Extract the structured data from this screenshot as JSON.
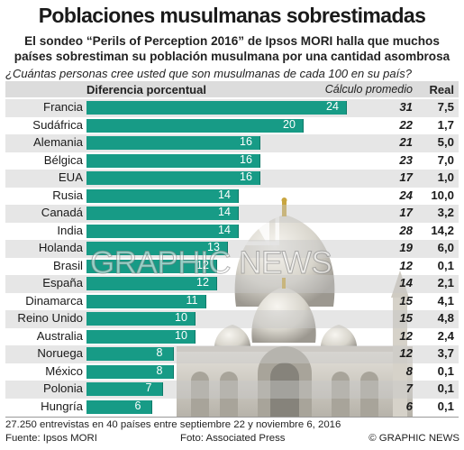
{
  "header": {
    "title": "Poblaciones musulmanas sobrestimadas",
    "subtitle_line1": "El sondeo “Perils of Perception 2016” de Ipsos MORI halla que muchos",
    "subtitle_line2": "países sobrestiman su población musulmana por una cantidad asombrosa",
    "question": "¿Cuántas personas cree usted que son musulmanas de cada 100 en su país?"
  },
  "columns": {
    "diff": "Diferencia porcentual",
    "calc": "Cálculo promedio",
    "real": "Real"
  },
  "chart_data": {
    "type": "bar",
    "orientation": "horizontal",
    "title": "Poblaciones musulmanas sobrestimadas",
    "xlabel": "Diferencia porcentual",
    "xlim": [
      0,
      24
    ],
    "categories": [
      "Francia",
      "Sudáfrica",
      "Alemania",
      "Bélgica",
      "EUA",
      "Rusia",
      "Canadá",
      "India",
      "Holanda",
      "Brasil",
      "España",
      "Dinamarca",
      "Reino Unido",
      "Australia",
      "Noruega",
      "México",
      "Polonia",
      "Hungría"
    ],
    "values": [
      24,
      20,
      16,
      16,
      16,
      14,
      14,
      14,
      13,
      12,
      12,
      11,
      10,
      10,
      8,
      8,
      7,
      6
    ],
    "calculo_promedio": [
      "31",
      "22",
      "21",
      "23",
      "17",
      "24",
      "17",
      "28",
      "19",
      "12",
      "14",
      "15",
      "15",
      "12",
      "12",
      "8",
      "7",
      "6"
    ],
    "real": [
      "7,5",
      "1,7",
      "5,0",
      "7,0",
      "1,0",
      "10,0",
      "3,2",
      "14,2",
      "6,0",
      "0,1",
      "2,1",
      "4,1",
      "4,8",
      "2,4",
      "3,7",
      "0,1",
      "0,1",
      "0,1"
    ],
    "bar_color": "#179b86"
  },
  "footer": {
    "note": "27.250 entrevistas en 40 países entre septiembre 22 y noviembre 6, 2016",
    "source": "Fuente: Ipsos MORI",
    "photo": "Foto: Associated Press",
    "copyright": "© GRAPHIC NEWS"
  },
  "watermark": "GRAPHIC NEWS"
}
